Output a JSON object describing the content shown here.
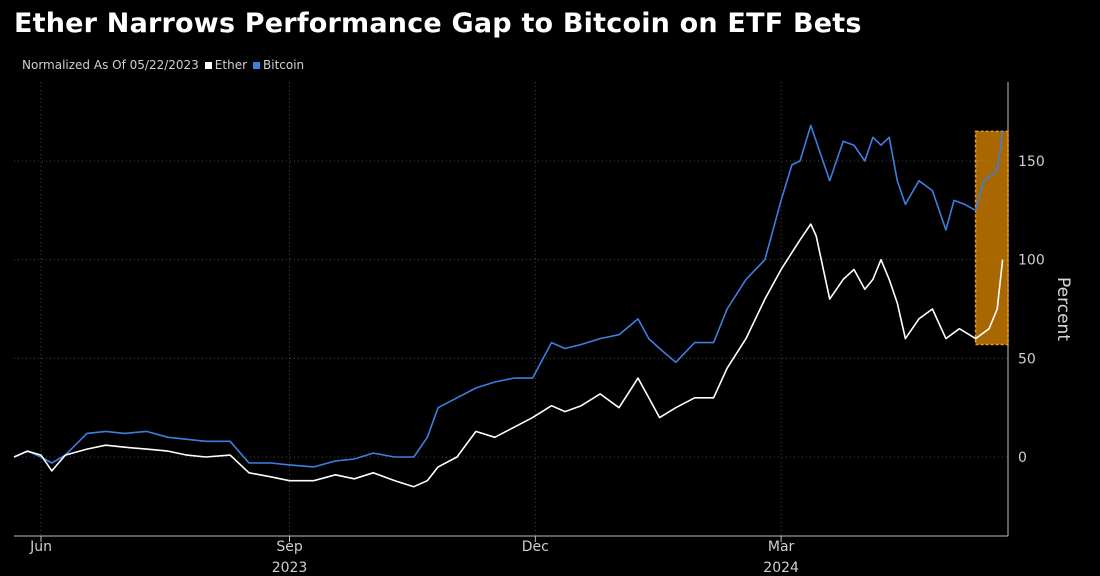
{
  "chart_data": {
    "type": "line",
    "title": "Ether Narrows Performance Gap to Bitcoin on ETF Bets",
    "subtitle": "Normalized As Of 05/22/2023",
    "ylabel": "Percent",
    "xlabel": "",
    "ylim": [
      -40,
      190
    ],
    "yticks": [
      0,
      50,
      100,
      150
    ],
    "x_ticks": [
      {
        "label": "Jun",
        "date": "2023-06-01"
      },
      {
        "label": "Sep",
        "date": "2023-09-01",
        "year": "2023"
      },
      {
        "label": "Dec",
        "date": "2023-12-01"
      },
      {
        "label": "Mar",
        "date": "2024-03-01",
        "year": "2024"
      }
    ],
    "x_range": [
      "2023-05-22",
      "2024-05-24"
    ],
    "grid": true,
    "legend_position": "top-left",
    "highlight": {
      "x_start": "2024-05-12",
      "x_end": "2024-05-24",
      "y_start": 57,
      "y_end": 165,
      "color": "#e08a00"
    },
    "series": [
      {
        "name": "Ether",
        "color": "#ffffff",
        "points": [
          [
            "2023-05-22",
            0
          ],
          [
            "2023-05-27",
            3
          ],
          [
            "2023-06-01",
            1
          ],
          [
            "2023-06-05",
            -7
          ],
          [
            "2023-06-10",
            1
          ],
          [
            "2023-06-18",
            4
          ],
          [
            "2023-06-25",
            6
          ],
          [
            "2023-07-02",
            5
          ],
          [
            "2023-07-10",
            4
          ],
          [
            "2023-07-18",
            3
          ],
          [
            "2023-07-25",
            1
          ],
          [
            "2023-08-01",
            0
          ],
          [
            "2023-08-10",
            1
          ],
          [
            "2023-08-17",
            -8
          ],
          [
            "2023-08-25",
            -10
          ],
          [
            "2023-09-01",
            -12
          ],
          [
            "2023-09-10",
            -12
          ],
          [
            "2023-09-18",
            -9
          ],
          [
            "2023-09-25",
            -11
          ],
          [
            "2023-10-02",
            -8
          ],
          [
            "2023-10-10",
            -12
          ],
          [
            "2023-10-17",
            -15
          ],
          [
            "2023-10-22",
            -12
          ],
          [
            "2023-10-26",
            -5
          ],
          [
            "2023-11-02",
            0
          ],
          [
            "2023-11-09",
            13
          ],
          [
            "2023-11-16",
            10
          ],
          [
            "2023-11-23",
            15
          ],
          [
            "2023-11-30",
            20
          ],
          [
            "2023-12-07",
            26
          ],
          [
            "2023-12-12",
            23
          ],
          [
            "2023-12-18",
            26
          ],
          [
            "2023-12-25",
            32
          ],
          [
            "2024-01-01",
            25
          ],
          [
            "2024-01-08",
            40
          ],
          [
            "2024-01-12",
            30
          ],
          [
            "2024-01-16",
            20
          ],
          [
            "2024-01-22",
            25
          ],
          [
            "2024-01-29",
            30
          ],
          [
            "2024-02-05",
            30
          ],
          [
            "2024-02-10",
            45
          ],
          [
            "2024-02-17",
            60
          ],
          [
            "2024-02-24",
            80
          ],
          [
            "2024-03-01",
            95
          ],
          [
            "2024-03-08",
            110
          ],
          [
            "2024-03-12",
            118
          ],
          [
            "2024-03-14",
            112
          ],
          [
            "2024-03-19",
            80
          ],
          [
            "2024-03-24",
            90
          ],
          [
            "2024-03-28",
            95
          ],
          [
            "2024-04-01",
            85
          ],
          [
            "2024-04-04",
            90
          ],
          [
            "2024-04-07",
            100
          ],
          [
            "2024-04-10",
            90
          ],
          [
            "2024-04-13",
            78
          ],
          [
            "2024-04-16",
            60
          ],
          [
            "2024-04-21",
            70
          ],
          [
            "2024-04-26",
            75
          ],
          [
            "2024-05-01",
            60
          ],
          [
            "2024-05-06",
            65
          ],
          [
            "2024-05-12",
            60
          ],
          [
            "2024-05-17",
            65
          ],
          [
            "2024-05-20",
            75
          ],
          [
            "2024-05-22",
            100
          ]
        ]
      },
      {
        "name": "Bitcoin",
        "color": "#3d7fe0",
        "points": [
          [
            "2023-05-22",
            0
          ],
          [
            "2023-05-27",
            3
          ],
          [
            "2023-06-01",
            0
          ],
          [
            "2023-06-05",
            -3
          ],
          [
            "2023-06-10",
            1
          ],
          [
            "2023-06-18",
            12
          ],
          [
            "2023-06-25",
            13
          ],
          [
            "2023-07-02",
            12
          ],
          [
            "2023-07-10",
            13
          ],
          [
            "2023-07-18",
            10
          ],
          [
            "2023-07-25",
            9
          ],
          [
            "2023-08-01",
            8
          ],
          [
            "2023-08-10",
            8
          ],
          [
            "2023-08-17",
            -3
          ],
          [
            "2023-08-25",
            -3
          ],
          [
            "2023-09-01",
            -4
          ],
          [
            "2023-09-10",
            -5
          ],
          [
            "2023-09-18",
            -2
          ],
          [
            "2023-09-25",
            -1
          ],
          [
            "2023-10-02",
            2
          ],
          [
            "2023-10-10",
            0
          ],
          [
            "2023-10-17",
            0
          ],
          [
            "2023-10-22",
            10
          ],
          [
            "2023-10-26",
            25
          ],
          [
            "2023-11-02",
            30
          ],
          [
            "2023-11-09",
            35
          ],
          [
            "2023-11-16",
            38
          ],
          [
            "2023-11-23",
            40
          ],
          [
            "2023-11-30",
            40
          ],
          [
            "2023-12-07",
            58
          ],
          [
            "2023-12-12",
            55
          ],
          [
            "2023-12-18",
            57
          ],
          [
            "2023-12-25",
            60
          ],
          [
            "2024-01-01",
            62
          ],
          [
            "2024-01-08",
            70
          ],
          [
            "2024-01-12",
            60
          ],
          [
            "2024-01-16",
            55
          ],
          [
            "2024-01-22",
            48
          ],
          [
            "2024-01-29",
            58
          ],
          [
            "2024-02-05",
            58
          ],
          [
            "2024-02-10",
            75
          ],
          [
            "2024-02-17",
            90
          ],
          [
            "2024-02-24",
            100
          ],
          [
            "2024-03-01",
            130
          ],
          [
            "2024-03-05",
            148
          ],
          [
            "2024-03-08",
            150
          ],
          [
            "2024-03-12",
            168
          ],
          [
            "2024-03-14",
            160
          ],
          [
            "2024-03-19",
            140
          ],
          [
            "2024-03-24",
            160
          ],
          [
            "2024-03-28",
            158
          ],
          [
            "2024-04-01",
            150
          ],
          [
            "2024-04-04",
            162
          ],
          [
            "2024-04-07",
            158
          ],
          [
            "2024-04-10",
            162
          ],
          [
            "2024-04-13",
            140
          ],
          [
            "2024-04-16",
            128
          ],
          [
            "2024-04-21",
            140
          ],
          [
            "2024-04-26",
            135
          ],
          [
            "2024-05-01",
            115
          ],
          [
            "2024-05-04",
            130
          ],
          [
            "2024-05-08",
            128
          ],
          [
            "2024-05-12",
            125
          ],
          [
            "2024-05-15",
            140
          ],
          [
            "2024-05-20",
            145
          ],
          [
            "2024-05-22",
            165
          ]
        ]
      }
    ]
  }
}
